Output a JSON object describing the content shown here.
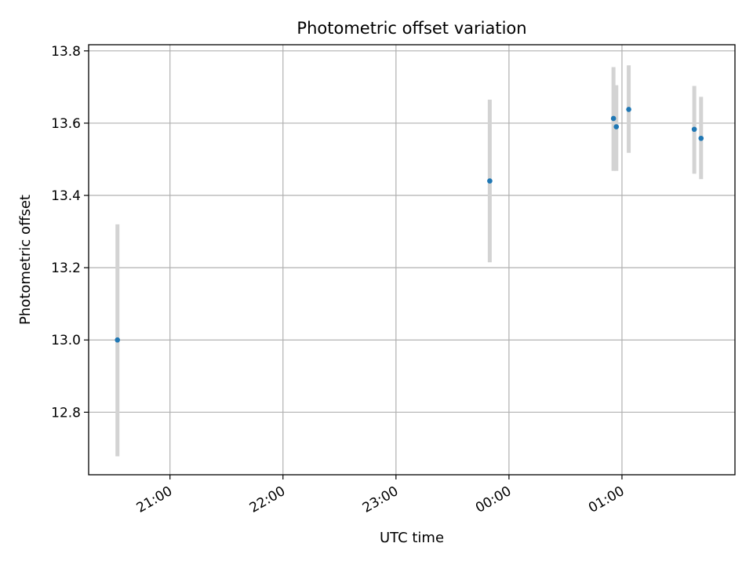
{
  "chart_data": {
    "type": "scatter",
    "title": "Photometric offset variation",
    "xlabel": "UTC time",
    "ylabel": "Photometric offset",
    "x_tick_labels": [
      "21:00",
      "22:00",
      "23:00",
      "00:00",
      "01:00"
    ],
    "y_tick_labels": [
      "12.8",
      "13.0",
      "13.2",
      "13.4",
      "13.6",
      "13.8"
    ],
    "x_ticks_hours": [
      21,
      22,
      23,
      24,
      25
    ],
    "y_ticks": [
      12.8,
      13.0,
      13.2,
      13.4,
      13.6,
      13.8
    ],
    "xlim_hours": [
      20.28,
      26.0
    ],
    "ylim": [
      12.627,
      13.817
    ],
    "grid": true,
    "points": [
      {
        "time": "20:32",
        "x": 20.535,
        "y": 13.0,
        "err_low": 12.678,
        "err_high": 13.32
      },
      {
        "time": "23:49",
        "x": 23.83,
        "y": 13.44,
        "err_low": 13.215,
        "err_high": 13.665
      },
      {
        "time": "00:55",
        "x": 24.925,
        "y": 13.613,
        "err_low": 13.468,
        "err_high": 13.755
      },
      {
        "time": "00:57",
        "x": 24.95,
        "y": 13.59,
        "err_low": 13.468,
        "err_high": 13.705
      },
      {
        "time": "01:03",
        "x": 25.06,
        "y": 13.638,
        "err_low": 13.518,
        "err_high": 13.76
      },
      {
        "time": "01:38",
        "x": 25.64,
        "y": 13.583,
        "err_low": 13.46,
        "err_high": 13.703
      },
      {
        "time": "01:42",
        "x": 25.7,
        "y": 13.558,
        "err_low": 13.445,
        "err_high": 13.673
      }
    ],
    "colors": {
      "point": "#1f77b4",
      "errorbar": "#d3d3d3",
      "grid": "#b0b0b0",
      "axes": "#000000"
    }
  }
}
